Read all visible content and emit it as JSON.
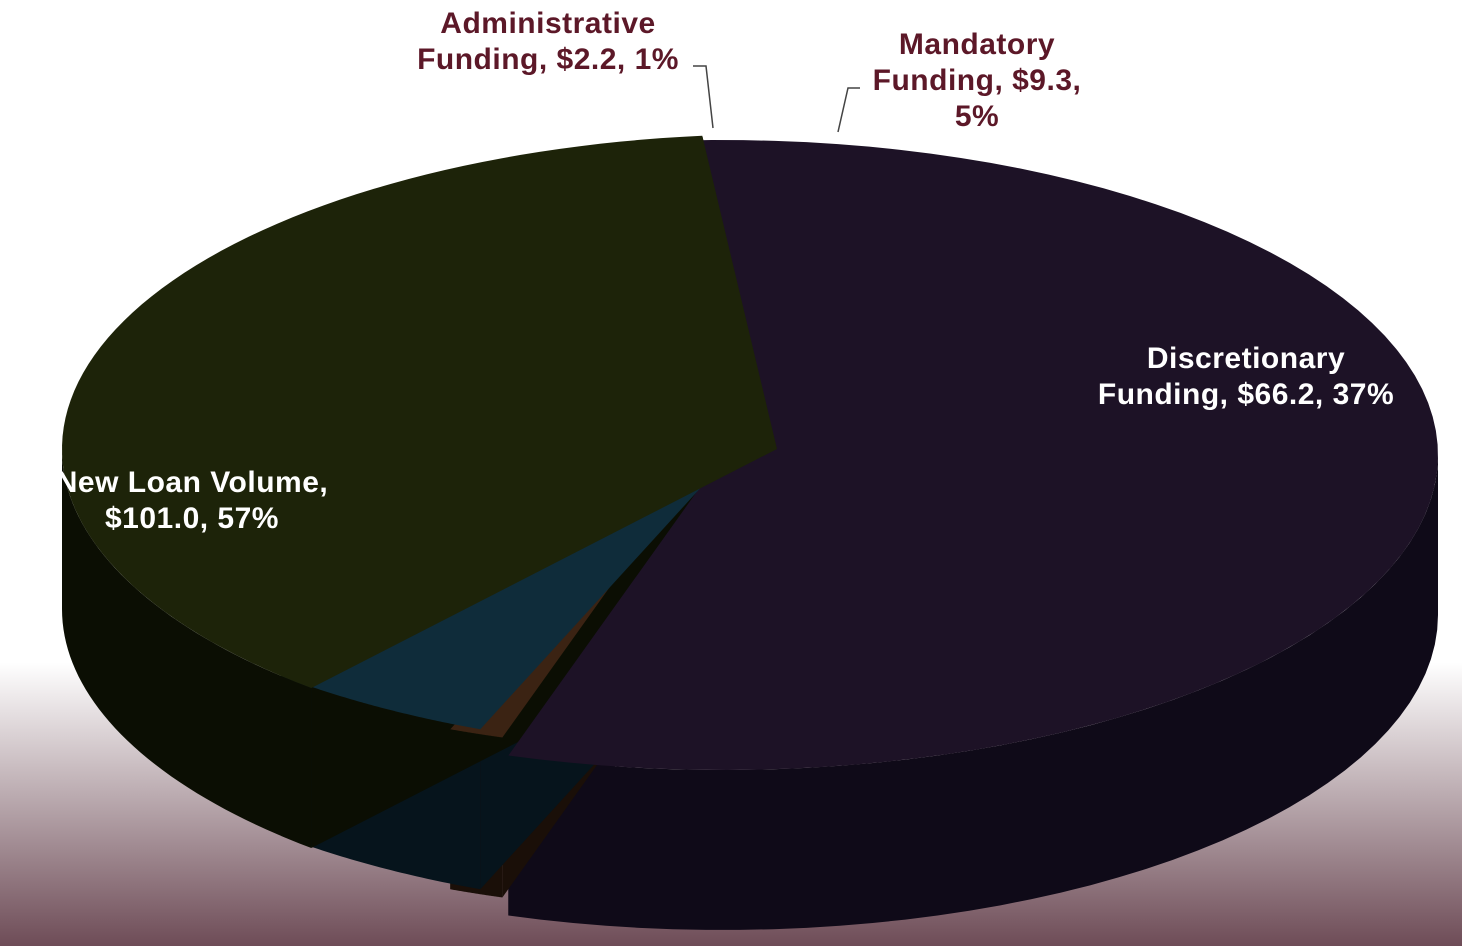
{
  "colors": {
    "background_top": "#ffffff",
    "background_bottom": "#6e4c57",
    "outside_label": "#5c1828",
    "inside_label": "#ffffff"
  },
  "chart_data": {
    "type": "pie",
    "title": "",
    "three_d": true,
    "slices": [
      {
        "label": "New Loan Volume",
        "value": 101.0,
        "percent": 57,
        "display": [
          "New Loan Volume,",
          "$101.0, 57%"
        ],
        "label_position": "inside",
        "top_color": "#1d1226",
        "side_color": "#0f0a18"
      },
      {
        "label": "Administrative Funding",
        "value": 2.2,
        "percent": 1,
        "display": [
          "Administrative",
          "Funding, $2.2, 1%"
        ],
        "label_position": "outside",
        "top_color": "#3b2313",
        "side_color": "#1a0f08"
      },
      {
        "label": "Mandatory Funding",
        "value": 9.3,
        "percent": 5,
        "display": [
          "Mandatory",
          "Funding, $9.3,",
          "5%"
        ],
        "label_position": "outside",
        "top_color": "#0f2c3a",
        "side_color": "#06141c"
      },
      {
        "label": "Discretionary Funding",
        "value": 66.2,
        "percent": 37,
        "display": [
          "Discretionary",
          "Funding, $66.2, 37%"
        ],
        "label_position": "inside",
        "top_color": "#1d2309",
        "side_color": "#0b0e03"
      }
    ]
  }
}
